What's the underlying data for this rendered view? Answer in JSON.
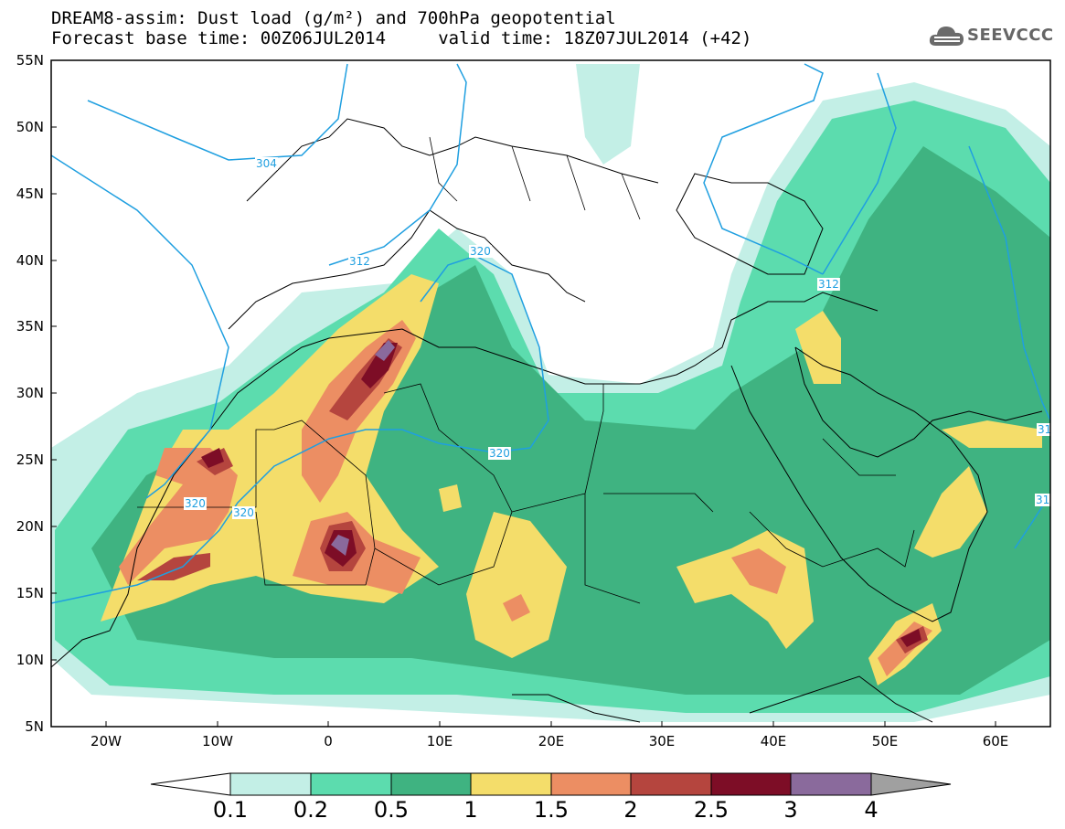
{
  "title": {
    "line1": "DREAM8-assim: Dust load (g/m²) and 700hPa geopotential",
    "line2": "Forecast base time: 00Z06JUL2014     valid time: 18Z07JUL2014 (+42)"
  },
  "logo": {
    "text": "SEEVCCC",
    "icon": "cloud-icon"
  },
  "map": {
    "lat_labels": [
      "55N",
      "50N",
      "45N",
      "40N",
      "35N",
      "30N",
      "25N",
      "20N",
      "15N",
      "10N",
      "5N"
    ],
    "lon_labels": [
      "20W",
      "10W",
      "0",
      "10E",
      "20E",
      "30E",
      "40E",
      "50E",
      "60E"
    ],
    "contour_labels": [
      "304",
      "312",
      "320",
      "320",
      "320",
      "320",
      "312",
      "31",
      "31"
    ]
  },
  "colorbar": {
    "labels": [
      "0.1",
      "0.2",
      "0.5",
      "1",
      "1.5",
      "2",
      "2.5",
      "3",
      "4"
    ],
    "colors": [
      "#ffffff",
      "#c3efe6",
      "#5cdcae",
      "#3fb381",
      "#f4dd6a",
      "#ec8e63",
      "#b5453e",
      "#7d0d26",
      "#8a6a9c",
      "#a0a0a0"
    ]
  },
  "legend_colors": {
    "c01": "#c3efe6",
    "c02": "#5cdcae",
    "c05": "#3fb381",
    "c1": "#f4dd6a",
    "c15": "#ec8e63",
    "c2": "#b5453e",
    "c25": "#7d0d26",
    "c3": "#8a6a9c",
    "contour": "#1f9fe0"
  }
}
